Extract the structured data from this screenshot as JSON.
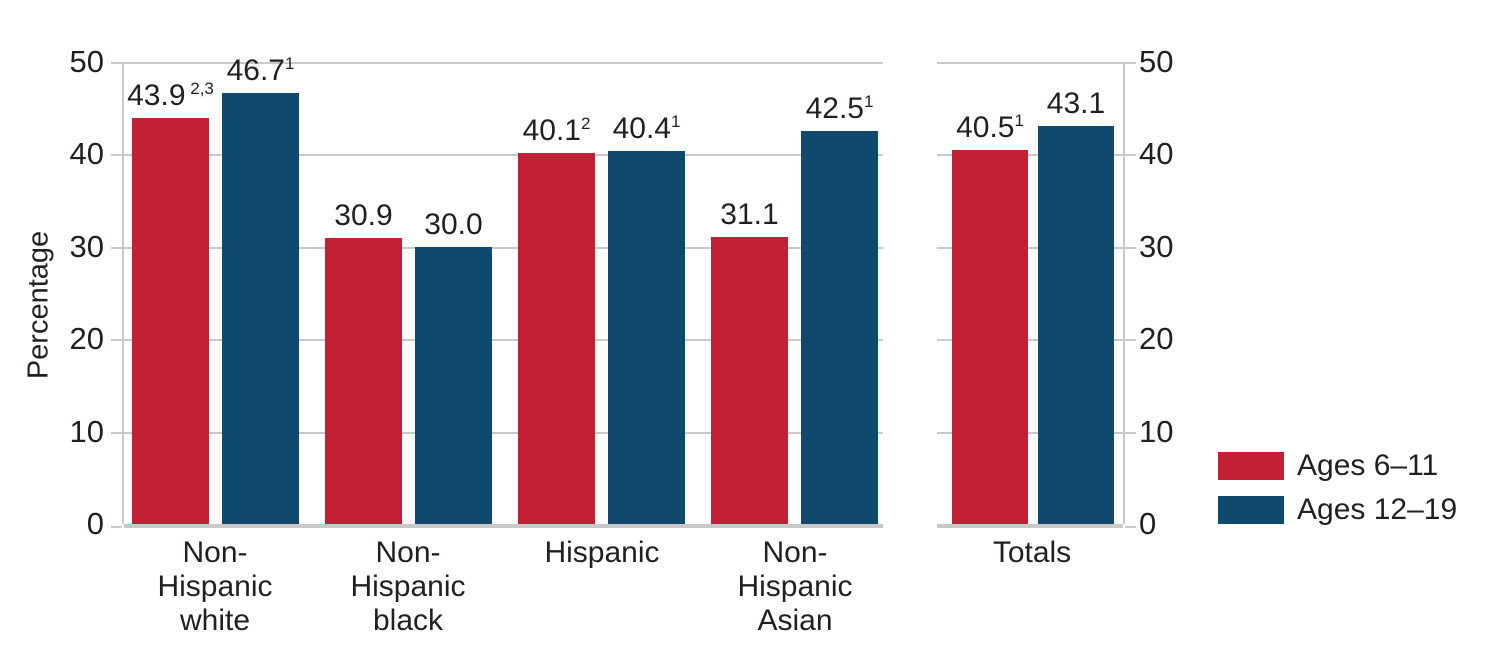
{
  "chart_data": {
    "type": "bar",
    "title": "",
    "ylabel": "Percentage",
    "xlabel": "",
    "ylim": [
      0,
      50
    ],
    "yticks": [
      0,
      10,
      20,
      30,
      40,
      50
    ],
    "grid": true,
    "legend_position": "bottom-right",
    "categories": [
      "Non-Hispanic white",
      "Non-Hispanic black",
      "Hispanic",
      "Non-Hispanic Asian",
      "Totals"
    ],
    "category_label_lines": [
      [
        "Non-",
        "Hispanic",
        "white"
      ],
      [
        "Non-",
        "Hispanic",
        "black"
      ],
      [
        "Hispanic"
      ],
      [
        "Non-",
        "Hispanic",
        "Asian"
      ],
      [
        "Totals"
      ]
    ],
    "panels": [
      {
        "name": "race-ethnicity-panel",
        "category_indexes": [
          0,
          1,
          2,
          3
        ],
        "tick_labels_side": "left"
      },
      {
        "name": "totals-panel",
        "category_indexes": [
          4
        ],
        "tick_labels_side": "right"
      }
    ],
    "series": [
      {
        "name": "Ages 6–11",
        "color": "#c22035",
        "values": [
          43.9,
          30.9,
          40.1,
          31.1,
          40.5
        ],
        "superscripts": [
          " 2,3",
          "",
          "2",
          "",
          "1"
        ]
      },
      {
        "name": "Ages 12–19",
        "color": "#10496e",
        "values": [
          46.7,
          30.0,
          40.4,
          42.5,
          43.1
        ],
        "superscripts": [
          "1",
          "",
          "1",
          "1",
          ""
        ]
      }
    ]
  },
  "colors": {
    "ages_6_11": "#c22035",
    "ages_12_19": "#10496e",
    "gridline": "#c9c9c9",
    "text": "#231f20",
    "background": "#ffffff"
  }
}
